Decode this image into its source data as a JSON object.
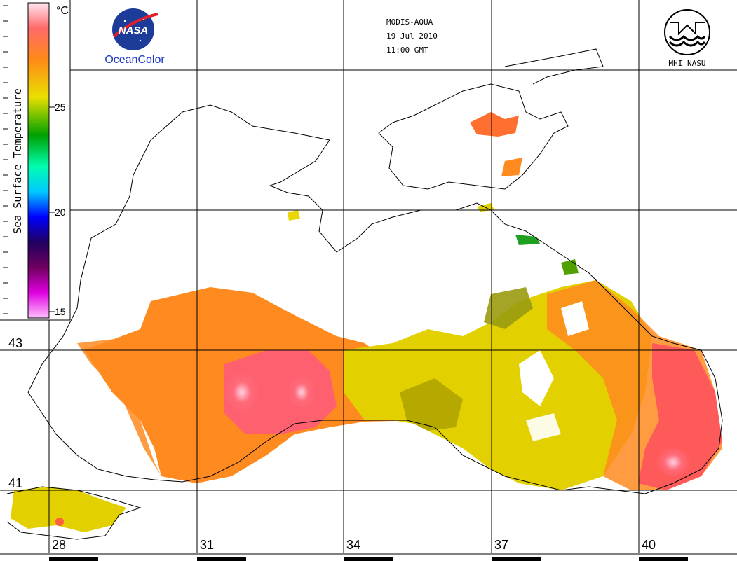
{
  "header": {
    "sensor": "MODIS-AQUA",
    "date": "19 Jul 2010",
    "time": "11:00 GMT"
  },
  "logos": {
    "nasa_text": "NASA",
    "oceancolor_text": "OceanColor",
    "institute_text": "MHI NASU"
  },
  "colorbar": {
    "title": "Sea Surface Temperature",
    "unit": "°C",
    "ticks": [
      "25",
      "20",
      "15"
    ],
    "colors": [
      "#ffd0e8",
      "#ff5050",
      "#ff8c10",
      "#e0e000",
      "#00a000",
      "#00d8ff",
      "#0000ff",
      "#500040",
      "#ffb0f8"
    ]
  },
  "axes": {
    "longitude_labels": [
      "28",
      "31",
      "34",
      "37",
      "40"
    ],
    "latitude_labels": [
      "43",
      "41"
    ]
  },
  "palette": {
    "warm_pink": "#ff6070",
    "orange": "#ff8a20",
    "yellow": "#e8d800",
    "olive": "#b0a800",
    "green": "#30a030"
  }
}
